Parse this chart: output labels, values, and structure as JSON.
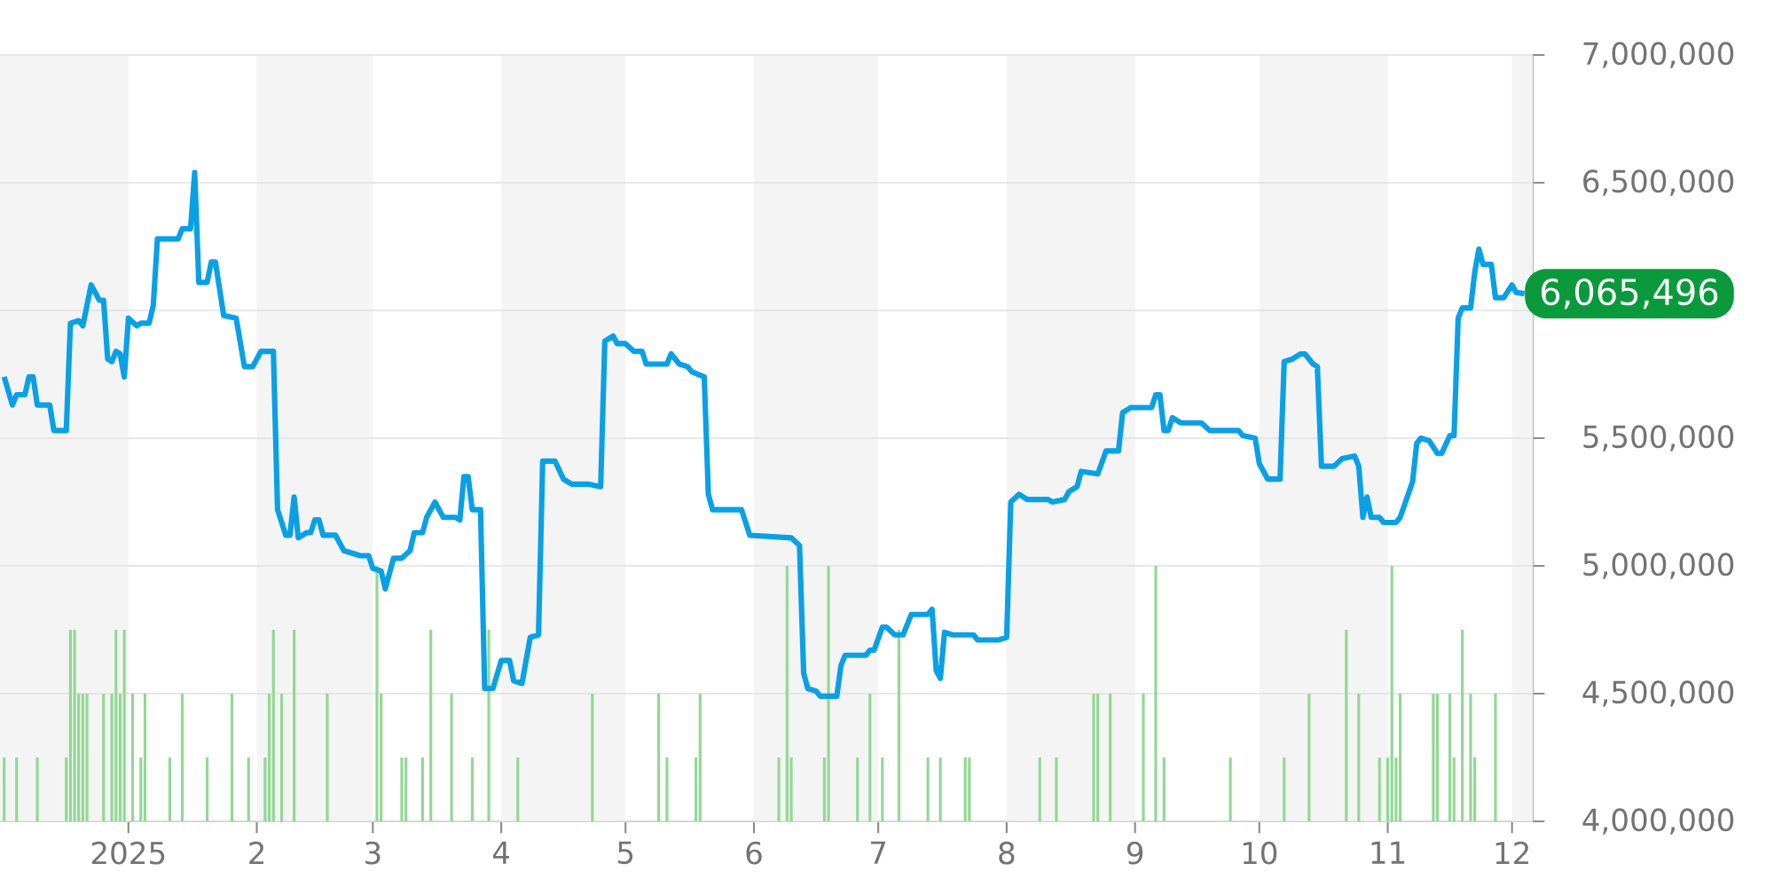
{
  "chart_data": {
    "type": "line",
    "xlim": [
      "2024-12-01",
      "2025-12-06"
    ],
    "ylim": [
      4000000,
      7000000
    ],
    "xticks": [
      {
        "value": "2025-01-01",
        "label": "2025"
      },
      {
        "value": "2025-02-01",
        "label": "2"
      },
      {
        "value": "2025-03-01",
        "label": "3"
      },
      {
        "value": "2025-04-01",
        "label": "4"
      },
      {
        "value": "2025-05-01",
        "label": "5"
      },
      {
        "value": "2025-06-01",
        "label": "6"
      },
      {
        "value": "2025-07-01",
        "label": "7"
      },
      {
        "value": "2025-08-01",
        "label": "8"
      },
      {
        "value": "2025-09-01",
        "label": "9"
      },
      {
        "value": "2025-10-01",
        "label": "10"
      },
      {
        "value": "2025-11-01",
        "label": "11"
      },
      {
        "value": "2025-12-01",
        "label": "12"
      }
    ],
    "yticks": [
      {
        "value": 4000000,
        "label": "4,000,000"
      },
      {
        "value": 4500000,
        "label": "4,500,000"
      },
      {
        "value": 5000000,
        "label": "5,000,000"
      },
      {
        "value": 5500000,
        "label": "5,500,000"
      },
      {
        "value": 6000000,
        "label": null
      },
      {
        "value": 6500000,
        "label": "6,500,000"
      },
      {
        "value": 7000000,
        "label": "7,000,000"
      }
    ],
    "grid": "y",
    "bands": [
      {
        "axis": "x",
        "from": "2024-12-01",
        "to": "2025-01-01",
        "color": "#f4f4f4"
      },
      {
        "axis": "x",
        "from": "2025-02-01",
        "to": "2025-03-01",
        "color": "#f4f4f4"
      },
      {
        "axis": "x",
        "from": "2025-04-01",
        "to": "2025-05-01",
        "color": "#f4f4f4"
      },
      {
        "axis": "x",
        "from": "2025-06-01",
        "to": "2025-07-01",
        "color": "#f4f4f4"
      },
      {
        "axis": "x",
        "from": "2025-08-01",
        "to": "2025-09-01",
        "color": "#f4f4f4"
      },
      {
        "axis": "x",
        "from": "2025-10-01",
        "to": "2025-11-01",
        "color": "#f4f4f4"
      },
      {
        "axis": "x",
        "from": "2025-12-01",
        "to": "2025-12-06",
        "color": "#f4f4f4"
      }
    ],
    "annotations": [
      {
        "text": "6,065,496",
        "x": "2025-12-04",
        "y": 6065496
      }
    ],
    "series": [
      {
        "type": "bar",
        "color": "#93d896",
        "x": [
          "2024-12-02",
          "2024-12-05",
          "2024-12-10",
          "2024-12-17",
          "2024-12-18",
          "2024-12-19",
          "2024-12-20",
          "2024-12-21",
          "2024-12-22",
          "2024-12-26",
          "2024-12-28",
          "2024-12-29",
          "2024-12-30",
          "2024-12-31",
          "2025-01-02",
          "2025-01-04",
          "2025-01-05",
          "2025-01-11",
          "2025-01-14",
          "2025-01-20",
          "2025-01-26",
          "2025-01-30",
          "2025-02-03",
          "2025-02-04",
          "2025-02-05",
          "2025-02-07",
          "2025-02-10",
          "2025-02-18",
          "2025-03-02",
          "2025-03-03",
          "2025-03-08",
          "2025-03-09",
          "2025-03-13",
          "2025-03-15",
          "2025-03-20",
          "2025-03-25",
          "2025-03-29",
          "2025-04-05",
          "2025-04-23",
          "2025-05-09",
          "2025-05-11",
          "2025-05-18",
          "2025-05-19",
          "2025-06-07",
          "2025-06-09",
          "2025-06-10",
          "2025-06-18",
          "2025-06-19",
          "2025-06-26",
          "2025-06-29",
          "2025-07-02",
          "2025-07-06",
          "2025-07-13",
          "2025-07-16",
          "2025-07-22",
          "2025-07-23",
          "2025-08-09",
          "2025-08-13",
          "2025-08-22",
          "2025-08-23",
          "2025-08-26",
          "2025-09-03",
          "2025-09-06",
          "2025-09-08",
          "2025-09-24",
          "2025-10-07",
          "2025-10-13",
          "2025-10-22",
          "2025-10-25",
          "2025-10-30",
          "2025-11-01",
          "2025-11-02",
          "2025-11-03",
          "2025-11-04",
          "2025-11-12",
          "2025-11-13",
          "2025-11-16",
          "2025-11-17",
          "2025-11-19",
          "2025-11-21",
          "2025-11-22",
          "2025-11-27"
        ],
        "values": [
          4250000,
          4250000,
          4250000,
          4250000,
          4750000,
          4750000,
          4500000,
          4500000,
          4500000,
          4500000,
          4500000,
          4750000,
          4500000,
          4750000,
          4500000,
          4250000,
          4500000,
          4250000,
          4500000,
          4250000,
          4500000,
          4250000,
          4250000,
          4500000,
          4750000,
          4500000,
          4750000,
          4500000,
          5000000,
          4500000,
          4250000,
          4250000,
          4250000,
          4750000,
          4500000,
          4250000,
          4750000,
          4250000,
          4500000,
          4500000,
          4250000,
          4250000,
          4500000,
          4250000,
          5000000,
          4250000,
          4250000,
          5000000,
          4250000,
          4500000,
          4250000,
          4750000,
          4250000,
          4250000,
          4250000,
          4250000,
          4250000,
          4250000,
          4500000,
          4500000,
          4500000,
          4500000,
          5000000,
          4250000,
          4250000,
          4250000,
          4500000,
          4750000,
          4500000,
          4250000,
          4250000,
          5000000,
          4250000,
          4500000,
          4500000,
          4500000,
          4500000,
          4250000,
          4750000,
          4500000,
          4250000,
          4500000
        ]
      },
      {
        "color": "#0aa0e6",
        "x": [
          "2024-12-02",
          "2024-12-04",
          "2024-12-05",
          "2024-12-07",
          "2024-12-08",
          "2024-12-09",
          "2024-12-10",
          "2024-12-13",
          "2024-12-14",
          "2024-12-17",
          "2024-12-18",
          "2024-12-20",
          "2024-12-21",
          "2024-12-23",
          "2024-12-25",
          "2024-12-26",
          "2024-12-27",
          "2024-12-28",
          "2024-12-29",
          "2024-12-30",
          "2024-12-31",
          "2025-01-01",
          "2025-01-03",
          "2025-01-04",
          "2025-01-06",
          "2025-01-07",
          "2025-01-08",
          "2025-01-13",
          "2025-01-14",
          "2025-01-16",
          "2025-01-17",
          "2025-01-18",
          "2025-01-20",
          "2025-01-21",
          "2025-01-22",
          "2025-01-24",
          "2025-01-27",
          "2025-01-29",
          "2025-01-31",
          "2025-02-02",
          "2025-02-05",
          "2025-02-06",
          "2025-02-08",
          "2025-02-09",
          "2025-02-10",
          "2025-02-11",
          "2025-02-13",
          "2025-02-14",
          "2025-02-15",
          "2025-02-16",
          "2025-02-17",
          "2025-02-20",
          "2025-02-22",
          "2025-02-26",
          "2025-02-28",
          "2025-03-01",
          "2025-03-03",
          "2025-03-04",
          "2025-03-06",
          "2025-03-08",
          "2025-03-10",
          "2025-03-11",
          "2025-03-13",
          "2025-03-14",
          "2025-03-16",
          "2025-03-18",
          "2025-03-21",
          "2025-03-22",
          "2025-03-23",
          "2025-03-24",
          "2025-03-25",
          "2025-03-27",
          "2025-03-28",
          "2025-03-30",
          "2025-04-01",
          "2025-04-03",
          "2025-04-04",
          "2025-04-06",
          "2025-04-08",
          "2025-04-10",
          "2025-04-11",
          "2025-04-14",
          "2025-04-16",
          "2025-04-18",
          "2025-04-22",
          "2025-04-25",
          "2025-04-26",
          "2025-04-28",
          "2025-04-29",
          "2025-05-01",
          "2025-05-03",
          "2025-05-05",
          "2025-05-06",
          "2025-05-11",
          "2025-05-12",
          "2025-05-14",
          "2025-05-16",
          "2025-05-17",
          "2025-05-20",
          "2025-05-21",
          "2025-05-22",
          "2025-05-29",
          "2025-05-31",
          "2025-06-10",
          "2025-06-12",
          "2025-06-13",
          "2025-06-14",
          "2025-06-16",
          "2025-06-17",
          "2025-06-21",
          "2025-06-22",
          "2025-06-23",
          "2025-06-28",
          "2025-06-29",
          "2025-06-30",
          "2025-07-02",
          "2025-07-03",
          "2025-07-05",
          "2025-07-07",
          "2025-07-09",
          "2025-07-13",
          "2025-07-14",
          "2025-07-15",
          "2025-07-16",
          "2025-07-17",
          "2025-07-19",
          "2025-07-24",
          "2025-07-25",
          "2025-07-30",
          "2025-08-01",
          "2025-08-02",
          "2025-08-04",
          "2025-08-06",
          "2025-08-11",
          "2025-08-12",
          "2025-08-15",
          "2025-08-16",
          "2025-08-18",
          "2025-08-19",
          "2025-08-23",
          "2025-08-25",
          "2025-08-28",
          "2025-08-29",
          "2025-08-31",
          "2025-09-05",
          "2025-09-06",
          "2025-09-07",
          "2025-09-08",
          "2025-09-09",
          "2025-09-10",
          "2025-09-12",
          "2025-09-17",
          "2025-09-19",
          "2025-09-26",
          "2025-09-27",
          "2025-09-30",
          "2025-10-01",
          "2025-10-03",
          "2025-10-06",
          "2025-10-07",
          "2025-10-09",
          "2025-10-11",
          "2025-10-12",
          "2025-10-14",
          "2025-10-15",
          "2025-10-16",
          "2025-10-19",
          "2025-10-21",
          "2025-10-24",
          "2025-10-25",
          "2025-10-26",
          "2025-10-27",
          "2025-10-28",
          "2025-10-30",
          "2025-10-31",
          "2025-11-03",
          "2025-11-04",
          "2025-11-07",
          "2025-11-08",
          "2025-11-09",
          "2025-11-11",
          "2025-11-13",
          "2025-11-14",
          "2025-11-16",
          "2025-11-17",
          "2025-11-18",
          "2025-11-19",
          "2025-11-21",
          "2025-11-22",
          "2025-11-23",
          "2025-11-24",
          "2025-11-26",
          "2025-11-27",
          "2025-11-29",
          "2025-12-01",
          "2025-12-02",
          "2025-12-04"
        ],
        "values": [
          5740000,
          5630000,
          5670000,
          5670000,
          5740000,
          5740000,
          5630000,
          5630000,
          5530000,
          5530000,
          5950000,
          5960000,
          5940000,
          6100000,
          6040000,
          6040000,
          5810000,
          5800000,
          5840000,
          5830000,
          5740000,
          5970000,
          5940000,
          5950000,
          5950000,
          6020000,
          6280000,
          6280000,
          6320000,
          6320000,
          6540000,
          6110000,
          6110000,
          6190000,
          6190000,
          5980000,
          5970000,
          5780000,
          5780000,
          5840000,
          5840000,
          5220000,
          5120000,
          5120000,
          5270000,
          5110000,
          5130000,
          5130000,
          5180000,
          5180000,
          5120000,
          5120000,
          5060000,
          5040000,
          5040000,
          4990000,
          4980000,
          4910000,
          5030000,
          5030000,
          5060000,
          5130000,
          5130000,
          5190000,
          5250000,
          5190000,
          5190000,
          5180000,
          5350000,
          5350000,
          5220000,
          5220000,
          4520000,
          4520000,
          4630000,
          4630000,
          4550000,
          4540000,
          4720000,
          4730000,
          5410000,
          5410000,
          5340000,
          5320000,
          5320000,
          5310000,
          5880000,
          5900000,
          5870000,
          5870000,
          5840000,
          5840000,
          5790000,
          5790000,
          5830000,
          5790000,
          5780000,
          5760000,
          5740000,
          5280000,
          5220000,
          5220000,
          5120000,
          5110000,
          5080000,
          4580000,
          4520000,
          4510000,
          4490000,
          4490000,
          4610000,
          4650000,
          4650000,
          4670000,
          4670000,
          4760000,
          4760000,
          4730000,
          4730000,
          4810000,
          4810000,
          4830000,
          4590000,
          4560000,
          4740000,
          4730000,
          4730000,
          4710000,
          4710000,
          4720000,
          5250000,
          5280000,
          5260000,
          5260000,
          5250000,
          5260000,
          5290000,
          5310000,
          5370000,
          5360000,
          5450000,
          5450000,
          5600000,
          5620000,
          5620000,
          5670000,
          5670000,
          5530000,
          5530000,
          5580000,
          5560000,
          5560000,
          5530000,
          5530000,
          5510000,
          5500000,
          5400000,
          5340000,
          5340000,
          5800000,
          5810000,
          5830000,
          5830000,
          5790000,
          5780000,
          5390000,
          5390000,
          5420000,
          5430000,
          5390000,
          5190000,
          5270000,
          5190000,
          5190000,
          5170000,
          5170000,
          5190000,
          5330000,
          5480000,
          5500000,
          5490000,
          5440000,
          5440000,
          5510000,
          5510000,
          5970000,
          6010000,
          6010000,
          6150000,
          6240000,
          6180000,
          6180000,
          6050000,
          6050000,
          6100000,
          6070000,
          6065496
        ]
      }
    ]
  }
}
